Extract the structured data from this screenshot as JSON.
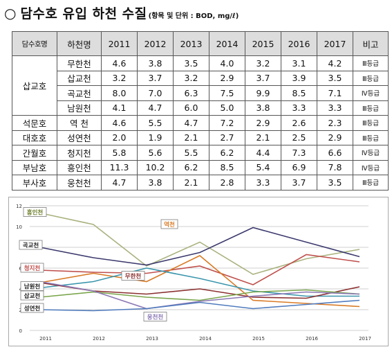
{
  "title": {
    "bullet": "○",
    "main": "담수호 유입 하천 수질",
    "sub": "(항목 및 단위 : BOD, mg/ℓ)"
  },
  "table": {
    "headers": [
      "담수호명",
      "하천명",
      "2011",
      "2012",
      "2013",
      "2014",
      "2015",
      "2016",
      "2017",
      "비고"
    ],
    "groups": [
      {
        "lake": "삽교호",
        "rows": [
          {
            "stream": "무한천",
            "values": [
              "4.6",
              "3.8",
              "3.5",
              "4.0",
              "3.2",
              "3.1",
              "4.2"
            ],
            "note": "Ⅲ등급"
          },
          {
            "stream": "삽교천",
            "values": [
              "3.2",
              "3.7",
              "3.2",
              "2.9",
              "3.7",
              "3.9",
              "3.5"
            ],
            "note": "Ⅲ등급"
          },
          {
            "stream": "곡교천",
            "values": [
              "8.0",
              "7.0",
              "6.3",
              "7.5",
              "9.9",
              "8.5",
              "7.1"
            ],
            "note": "Ⅳ등급"
          },
          {
            "stream": "남원천",
            "values": [
              "4.1",
              "4.7",
              "6.0",
              "5.0",
              "3.8",
              "3.3",
              "3.3"
            ],
            "note": "Ⅲ등급"
          }
        ]
      },
      {
        "lake": "석문호",
        "rows": [
          {
            "stream": "역  천",
            "values": [
              "4.6",
              "5.5",
              "4.7",
              "7.2",
              "2.9",
              "2.6",
              "2.3"
            ],
            "note": "Ⅲ등급"
          }
        ]
      },
      {
        "lake": "대호호",
        "rows": [
          {
            "stream": "성연천",
            "values": [
              "2.0",
              "1.9",
              "2.1",
              "2.7",
              "2.1",
              "2.5",
              "2.9"
            ],
            "note": "Ⅲ등급"
          }
        ]
      },
      {
        "lake": "간월호",
        "rows": [
          {
            "stream": "청지천",
            "values": [
              "5.8",
              "5.6",
              "5.5",
              "6.2",
              "4.4",
              "7.3",
              "6.6"
            ],
            "note": "Ⅳ등급"
          }
        ]
      },
      {
        "lake": "부남호",
        "rows": [
          {
            "stream": "흥인천",
            "values": [
              "11.3",
              "10.2",
              "6.2",
              "8.5",
              "5.4",
              "6.9",
              "7.8"
            ],
            "note": "Ⅳ등급"
          }
        ]
      },
      {
        "lake": "부사호",
        "rows": [
          {
            "stream": "웅천천",
            "values": [
              "4.7",
              "3.8",
              "2.1",
              "2.8",
              "3.3",
              "3.7",
              "3.5"
            ],
            "note": "Ⅲ등급"
          }
        ]
      }
    ]
  },
  "chart_data": {
    "type": "line",
    "x": [
      "2011",
      "2012",
      "2013",
      "2014",
      "2015",
      "2016",
      "2017"
    ],
    "ylim": [
      0,
      12
    ],
    "yticks": [
      "0",
      "2",
      "4",
      "6",
      "8",
      "10",
      "12"
    ],
    "grid": true,
    "series": [
      {
        "name": "흥인천",
        "color": "#a9b37f",
        "values": [
          11.3,
          10.2,
          6.2,
          8.5,
          5.4,
          6.9,
          7.8
        ]
      },
      {
        "name": "곡교천",
        "color": "#3c3a6e",
        "values": [
          8.0,
          7.0,
          6.3,
          7.5,
          9.9,
          8.5,
          7.1
        ]
      },
      {
        "name": "청지천",
        "color": "#c0504d",
        "values": [
          5.8,
          5.6,
          5.5,
          6.2,
          4.4,
          7.3,
          6.6
        ]
      },
      {
        "name": "역천",
        "color": "#d97a25",
        "values": [
          4.6,
          5.5,
          4.7,
          7.2,
          2.9,
          2.6,
          2.3
        ]
      },
      {
        "name": "남원천",
        "color": "#3b96ad",
        "values": [
          4.1,
          4.7,
          6.0,
          5.0,
          3.8,
          3.3,
          3.3
        ]
      },
      {
        "name": "무한천",
        "color": "#8b2f2f",
        "values": [
          4.6,
          3.8,
          3.5,
          4.0,
          3.2,
          3.1,
          4.2
        ]
      },
      {
        "name": "삽교천",
        "color": "#79a54b",
        "values": [
          3.2,
          3.7,
          3.2,
          2.9,
          3.7,
          3.9,
          3.5
        ]
      },
      {
        "name": "웅천천",
        "color": "#8b78b5",
        "values": [
          4.7,
          3.8,
          2.1,
          2.8,
          3.3,
          3.7,
          3.5
        ]
      },
      {
        "name": "성연천",
        "color": "#4f7bbd",
        "values": [
          2.0,
          1.9,
          2.1,
          2.7,
          2.1,
          2.5,
          2.9
        ]
      }
    ],
    "labels": [
      {
        "text": "흥인천",
        "color": "#6b7d2a",
        "at": [
          2011,
          11.3
        ]
      },
      {
        "text": "곡교천",
        "color": "#222222",
        "at": [
          2011,
          8.0
        ]
      },
      {
        "text": "청지천",
        "color": "#c0504d",
        "at": [
          2011,
          5.8
        ]
      },
      {
        "text": "남원천",
        "color": "#222222",
        "at": [
          2011,
          4.1
        ]
      },
      {
        "text": "삽교천",
        "color": "#222222",
        "at": [
          2011,
          3.2
        ]
      },
      {
        "text": "성연천",
        "color": "#222222",
        "at": [
          2011,
          2.0
        ]
      },
      {
        "text": "무한천",
        "color": "#8b2f2f",
        "at": [
          2013,
          3.5
        ]
      },
      {
        "text": "역천",
        "color": "#d97a25",
        "at": [
          2014,
          7.2
        ]
      },
      {
        "text": "웅천천",
        "color": "#8b78b5",
        "at": [
          2013,
          2.1
        ]
      }
    ]
  }
}
